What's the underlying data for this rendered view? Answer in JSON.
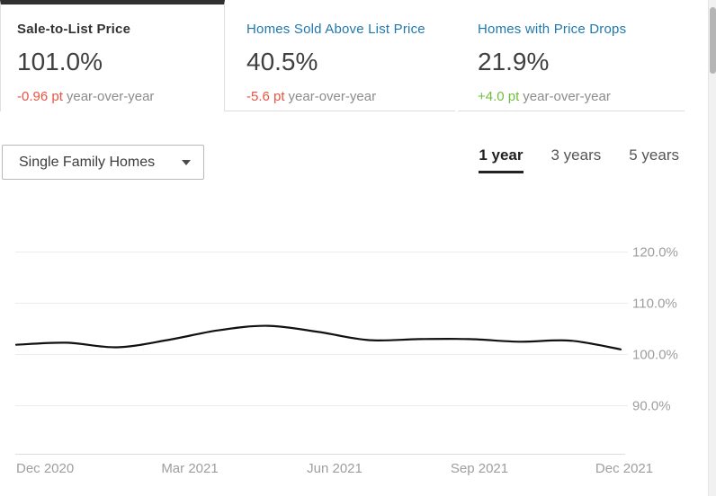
{
  "tabs": [
    {
      "label": "Sale-to-List Price",
      "value": "101.0%",
      "delta": "-0.96 pt",
      "delta_suffix": "year-over-year",
      "delta_direction": "negative",
      "selected": true
    },
    {
      "label": "Homes Sold Above List Price",
      "value": "40.5%",
      "delta": "-5.6 pt",
      "delta_suffix": "year-over-year",
      "delta_direction": "negative",
      "selected": false
    },
    {
      "label": "Homes with Price Drops",
      "value": "21.9%",
      "delta": "+4.0 pt",
      "delta_suffix": "year-over-year",
      "delta_direction": "positive",
      "selected": false
    }
  ],
  "filters": {
    "home_type_selected": "Single Family Homes",
    "ranges": [
      "1 year",
      "3 years",
      "5 years"
    ],
    "selected_range": "1 year"
  },
  "colors": {
    "accent_blue": "#2079ae",
    "negative_red": "#eb5442",
    "positive_green": "#6fbf3c",
    "selected_tab_border": "#303030",
    "line": "#111111",
    "axis_text": "#9e9e9e"
  },
  "chart_data": {
    "type": "line",
    "title": "Sale-to-List Price, 1 year, Single Family Homes",
    "x": [
      "Dec 2020",
      "Jan 2021",
      "Feb 2021",
      "Mar 2021",
      "Apr 2021",
      "May 2021",
      "Jun 2021",
      "Jul 2021",
      "Aug 2021",
      "Sep 2021",
      "Oct 2021",
      "Nov 2021",
      "Dec 2021"
    ],
    "series": [
      {
        "name": "Sale-to-List Price",
        "values": [
          101.9,
          102.3,
          101.4,
          102.8,
          104.7,
          105.6,
          104.4,
          102.8,
          103.0,
          103.0,
          102.5,
          102.7,
          101.0
        ]
      }
    ],
    "x_ticks": [
      "Dec 2020",
      "Mar 2021",
      "Jun 2021",
      "Sep 2021",
      "Dec 2021"
    ],
    "y_ticks": [
      "120.0%",
      "110.0%",
      "100.0%",
      "90.0%"
    ],
    "y_tick_values": [
      120,
      110,
      100,
      90
    ],
    "ylim": [
      80.5,
      125.3
    ],
    "grid": "horizontal",
    "legend": "none",
    "xlabel": "",
    "ylabel": ""
  }
}
